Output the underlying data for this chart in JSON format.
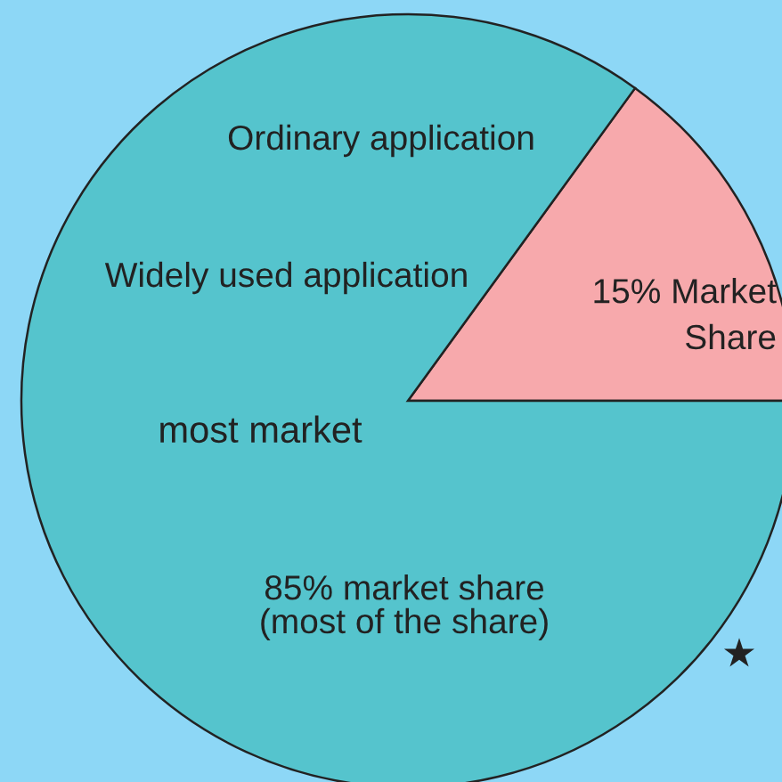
{
  "chart_data": {
    "type": "pie",
    "categories": [
      null,
      null
    ],
    "values": [
      15,
      85
    ],
    "colors": [
      "#f7a9ac",
      "#55c4cd"
    ],
    "value_labels": [
      "15% Market\nShare",
      "85% market share\n(most of the share)"
    ],
    "annotations": [
      "Ordinary application",
      "Widely used application",
      "most market",
      "★"
    ]
  }
}
